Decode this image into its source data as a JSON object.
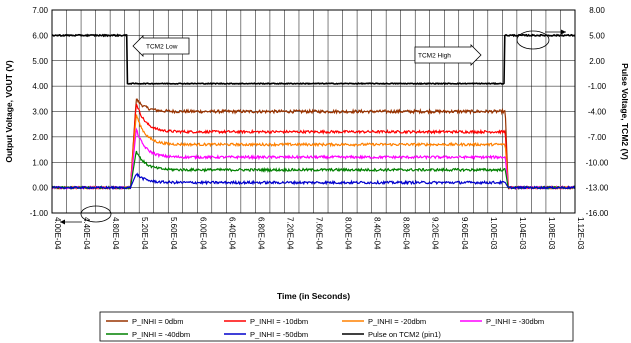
{
  "chart_data": {
    "type": "line",
    "title": "",
    "xlabel": "Time (in Seconds)",
    "ylabel": "Output Voltage, VOUT  (V)",
    "y2label": "Pulse Voltage, TCM2  (V)",
    "xlim": [
      0.0004,
      0.00112
    ],
    "ylim": [
      -1.0,
      7.0
    ],
    "y2lim": [
      -16.0,
      8.0
    ],
    "x_tick_values": [
      0.0004,
      0.00044,
      0.00048,
      0.00052,
      0.00056,
      0.0006,
      0.00064,
      0.00068,
      0.00072,
      0.00076,
      0.0008,
      0.00084,
      0.00088,
      0.00092,
      0.00096,
      0.001,
      0.00104,
      0.00108,
      0.00112
    ],
    "x_tick_labels": [
      "4.00E-04",
      "4.40E-04",
      "4.80E-04",
      "5.20E-04",
      "5.60E-04",
      "6.00E-04",
      "6.40E-04",
      "6.80E-04",
      "7.20E-04",
      "7.60E-04",
      "8.00E-04",
      "8.40E-04",
      "8.80E-04",
      "9.20E-04",
      "9.60E-04",
      "1.00E-03",
      "1.04E-03",
      "1.08E-03",
      "1.12E-03"
    ],
    "y_tick_values": [
      7,
      6,
      5,
      4,
      3,
      2,
      1,
      0,
      -1
    ],
    "y_tick_labels": [
      "7.00",
      "6.00",
      "5.00",
      "4.00",
      "3.00",
      "2.00",
      "1.00",
      "0.00",
      "-1.00"
    ],
    "y2_tick_values": [
      8,
      5,
      2,
      -1,
      -4,
      -7,
      -10,
      -13,
      -16
    ],
    "y2_tick_labels": [
      "8.00",
      "5.00",
      "2.00",
      "-1.00",
      "-4.00",
      "-7.00",
      "-10.00",
      "-13.00",
      "-16.00"
    ],
    "grid": true,
    "legend_position": "bottom",
    "annotations": [
      {
        "text": "TCM2 Low"
      },
      {
        "text": "TCM2 High"
      }
    ],
    "series": [
      {
        "name": "P_INHI = 0dbm",
        "color": "#993300",
        "axis": "left",
        "low": 0.0,
        "peak": 3.5,
        "plateau": 3.0,
        "noise": 0.06
      },
      {
        "name": "P_INHI = -10dbm",
        "color": "#ff0000",
        "axis": "left",
        "low": 0.0,
        "peak": 3.35,
        "plateau": 2.2,
        "noise": 0.05
      },
      {
        "name": "P_INHI = -20dbm",
        "color": "#ff8000",
        "axis": "left",
        "low": 0.0,
        "peak": 2.9,
        "plateau": 1.7,
        "noise": 0.05
      },
      {
        "name": "P_INHI = -30dbm",
        "color": "#ff00ff",
        "axis": "left",
        "low": 0.0,
        "peak": 2.3,
        "plateau": 1.2,
        "noise": 0.05
      },
      {
        "name": "P_INHI = -40dbm",
        "color": "#008000",
        "axis": "left",
        "low": 0.0,
        "peak": 1.45,
        "plateau": 0.7,
        "noise": 0.05
      },
      {
        "name": "P_INHI = -50dbm",
        "color": "#0000cc",
        "axis": "left",
        "low": 0.0,
        "peak": 0.55,
        "plateau": 0.2,
        "noise": 0.05
      },
      {
        "name": "Pulse on TCM2 (pin1)",
        "color": "#000000",
        "axis": "right",
        "high": 5.0,
        "low_level": -0.7
      }
    ],
    "pulse_edges": [
      0.000503,
      0.001023
    ]
  }
}
